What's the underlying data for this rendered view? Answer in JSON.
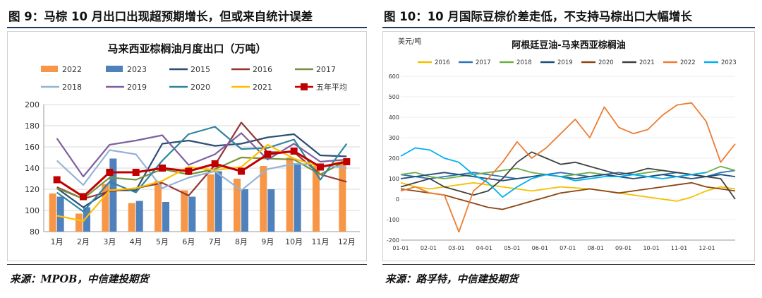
{
  "left": {
    "fig_title": "图 9：马棕 10 月出口出现超预期增长，但或来自统计误差",
    "source": "来源：MPOB，中信建投期货",
    "chart_data": {
      "type": "bar+line",
      "title": "马来西亚棕榈油月度出口（万吨）",
      "categories": [
        "1月",
        "2月",
        "3月",
        "4月",
        "5月",
        "6月",
        "7月",
        "8月",
        "9月",
        "10月",
        "11月",
        "12月"
      ],
      "ylim": [
        80,
        200
      ],
      "yticks": [
        80,
        100,
        120,
        140,
        160,
        180,
        200
      ],
      "series": [
        {
          "name": "2022",
          "kind": "bar",
          "color": "#f79646",
          "values": [
            116,
            97,
            125,
            107,
            128,
            119,
            134,
            130,
            142,
            150,
            142,
            145
          ]
        },
        {
          "name": "2023",
          "kind": "bar",
          "color": "#4f81bd",
          "values": [
            113,
            103,
            149,
            109,
            108,
            113,
            137,
            120,
            120,
            144,
            null,
            null
          ]
        },
        {
          "name": "2015",
          "kind": "line",
          "color": "#2c4d75",
          "values": [
            121,
            103,
            119,
            119,
            163,
            166,
            161,
            163,
            169,
            172,
            152,
            151
          ]
        },
        {
          "name": "2016",
          "kind": "line",
          "color": "#953735",
          "values": [
            122,
            111,
            118,
            121,
            126,
            114,
            143,
            183,
            155,
            155,
            134,
            127
          ]
        },
        {
          "name": "2017",
          "kind": "line",
          "color": "#77933c",
          "values": [
            121,
            111,
            131,
            129,
            139,
            134,
            139,
            150,
            149,
            148,
            134,
            147
          ]
        },
        {
          "name": "2018",
          "kind": "line",
          "color": "#95b3d7",
          "values": [
            147,
            124,
            157,
            153,
            121,
            131,
            137,
            119,
            139,
            144,
            143,
            140
          ]
        },
        {
          "name": "2019",
          "kind": "line",
          "color": "#7f5f9f",
          "values": [
            168,
            132,
            162,
            166,
            171,
            143,
            153,
            173,
            148,
            163,
            146,
            148
          ]
        },
        {
          "name": "2020",
          "kind": "line",
          "color": "#31859c",
          "values": [
            117,
            99,
            127,
            117,
            147,
            172,
            179,
            158,
            159,
            167,
            129,
            163
          ]
        },
        {
          "name": "2021",
          "kind": "line",
          "color": "#ffc000",
          "values": [
            95,
            90,
            119,
            121,
            128,
            141,
            138,
            141,
            162,
            149,
            141,
            147
          ]
        },
        {
          "name": "五年平均",
          "kind": "line-marker",
          "color": "#c00000",
          "values": [
            129,
            113,
            136,
            136,
            140,
            137,
            144,
            137,
            153,
            156,
            141,
            146
          ]
        }
      ]
    }
  },
  "right": {
    "fig_title": "图 10：10 月国际豆棕价差走低，不支持马棕出口大幅增长",
    "source": "来源：路孚特，中信建投期货",
    "chart_data": {
      "type": "line",
      "title": "阿根廷豆油-马来西亚棕榈油",
      "ylabel": "美元/吨",
      "ylim": [
        -200,
        600
      ],
      "yticks": [
        -200,
        -100,
        0,
        100,
        200,
        300,
        400,
        500,
        600
      ],
      "xticks": [
        "01-01",
        "02-01",
        "03-01",
        "04-01",
        "05-01",
        "06-01",
        "07-01",
        "08-01",
        "09-01",
        "10-01",
        "11-01",
        "12-01"
      ],
      "series": [
        {
          "name": "2016",
          "color": "#f2c200",
          "values": [
            80,
            60,
            50,
            60,
            70,
            80,
            70,
            60,
            50,
            40,
            50,
            60,
            55,
            50,
            40,
            30,
            20,
            10,
            0,
            -10,
            10,
            40,
            60,
            50
          ]
        },
        {
          "name": "2017",
          "color": "#2e75b6",
          "values": [
            120,
            110,
            100,
            110,
            120,
            130,
            120,
            110,
            100,
            110,
            120,
            130,
            120,
            110,
            120,
            130,
            120,
            110,
            120,
            130,
            120,
            110,
            130,
            140
          ]
        },
        {
          "name": "2018",
          "color": "#70ad47",
          "values": [
            120,
            130,
            110,
            100,
            110,
            120,
            130,
            140,
            150,
            130,
            120,
            110,
            120,
            130,
            120,
            110,
            120,
            130,
            140,
            130,
            120,
            130,
            160,
            140
          ]
        },
        {
          "name": "2019",
          "color": "#1f4e79",
          "values": [
            100,
            110,
            120,
            130,
            120,
            110,
            100,
            90,
            100,
            110,
            120,
            110,
            100,
            110,
            120,
            110,
            100,
            110,
            120,
            110,
            100,
            110,
            120,
            110
          ]
        },
        {
          "name": "2020",
          "color": "#8b4513",
          "values": [
            50,
            40,
            30,
            20,
            0,
            -20,
            -40,
            -50,
            -30,
            -10,
            10,
            30,
            40,
            50,
            40,
            30,
            40,
            50,
            60,
            70,
            80,
            60,
            50,
            40
          ]
        },
        {
          "name": "2021",
          "color": "#404040",
          "values": [
            60,
            80,
            100,
            60,
            40,
            20,
            40,
            100,
            180,
            230,
            200,
            170,
            180,
            160,
            140,
            120,
            130,
            150,
            140,
            130,
            120,
            110,
            100,
            0
          ]
        },
        {
          "name": "2022",
          "color": "#ed7d31",
          "values": [
            40,
            60,
            30,
            20,
            -160,
            40,
            100,
            180,
            280,
            200,
            250,
            320,
            390,
            300,
            450,
            350,
            320,
            340,
            410,
            460,
            470,
            380,
            180,
            270
          ]
        },
        {
          "name": "2023",
          "color": "#00b0f0",
          "values": [
            210,
            250,
            240,
            200,
            180,
            120,
            80,
            10,
            60,
            100,
            120,
            110,
            90,
            100,
            110,
            110,
            120,
            110,
            100,
            110,
            120,
            130,
            null,
            null
          ]
        }
      ]
    }
  }
}
